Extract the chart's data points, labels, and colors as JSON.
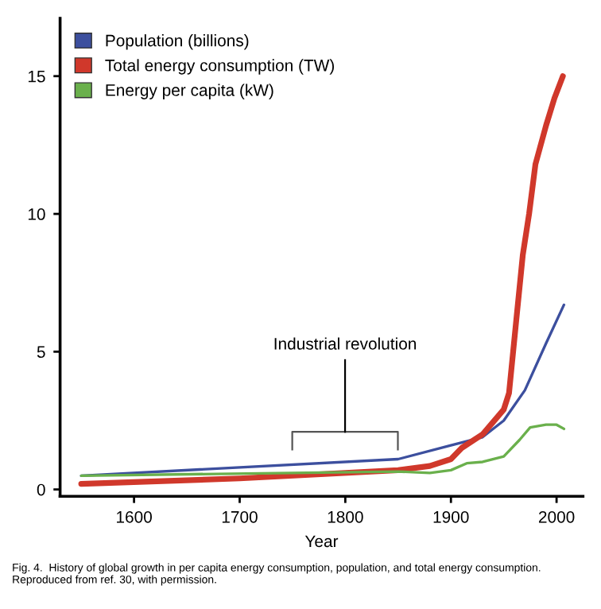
{
  "chart_data": {
    "type": "line",
    "xlabel": "Year",
    "legend": "top left",
    "grid": false,
    "xlim": [
      1530,
      2025
    ],
    "ylim": [
      -0.25,
      17.1
    ],
    "xticks": [
      1600,
      1700,
      1800,
      1900,
      2000
    ],
    "yticks": [
      0,
      5,
      10,
      15
    ],
    "series": [
      {
        "name": "Population (billions)",
        "color": "#3c4f9e",
        "x": [
          1550,
          1850,
          1900,
          1930,
          1950,
          1970,
          1990,
          2007
        ],
        "values": [
          0.5,
          1.1,
          1.6,
          1.9,
          2.5,
          3.6,
          5.3,
          6.7
        ]
      },
      {
        "name": "Total energy consumption (TW)",
        "color": "#d0382b",
        "x": [
          1550,
          1700,
          1850,
          1880,
          1900,
          1910,
          1930,
          1950,
          1955,
          1962,
          1968,
          1974,
          1980,
          1990,
          1998,
          2006
        ],
        "values": [
          0.2,
          0.4,
          0.7,
          0.85,
          1.1,
          1.5,
          2.0,
          2.9,
          3.5,
          6.2,
          8.5,
          10,
          11.8,
          13.2,
          14.2,
          15.0
        ]
      },
      {
        "name": "Energy per capita (kW)",
        "color": "#6ab04c",
        "x": [
          1550,
          1850,
          1880,
          1900,
          1915,
          1930,
          1950,
          1965,
          1975,
          1990,
          2000,
          2007
        ],
        "values": [
          0.5,
          0.65,
          0.6,
          0.7,
          0.95,
          1.0,
          1.2,
          1.8,
          2.25,
          2.35,
          2.35,
          2.2
        ]
      }
    ],
    "annotations": [
      "Industrial revolution",
      "Fig. 4.  History of global growth in per capita energy consumption, population, and total energy consumption. Reproduced from ref. 30, with permission."
    ]
  }
}
